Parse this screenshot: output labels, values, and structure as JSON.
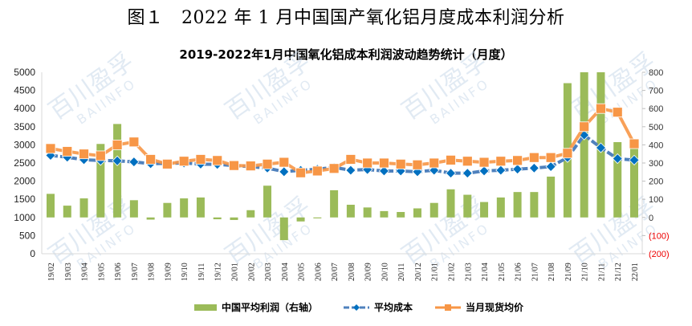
{
  "figure_title": "图１　2022 年 1 月中国国产氧化铝月度成本利润分析",
  "chart_title": "2019-2022年1月中国氧化铝成本利润波动趋势统计（月度）",
  "watermark": {
    "cn": "百川盈孚",
    "en": "BAIINFO"
  },
  "legend": {
    "profit": "中国平均利润（右轴）",
    "cost": "平均成本",
    "price": "当月现货均价"
  },
  "colors": {
    "profit": "#9bbb59",
    "cost": "#4f81bd",
    "cost_marker": "#0070c0",
    "price": "#f79646",
    "negative_tick": "#ff0000"
  },
  "left_axis_ticks": [
    "5000",
    "4500",
    "4000",
    "3500",
    "3000",
    "2500",
    "2000",
    "1500",
    "1000",
    "500",
    "0"
  ],
  "right_axis_ticks": [
    "800",
    "700",
    "600",
    "500",
    "400",
    "300",
    "200",
    "100",
    "0",
    "(100)",
    "(200)"
  ],
  "chart_data": {
    "type": "bar+line",
    "title": "2019-2022年1月中国氧化铝成本利润波动趋势统计（月度）",
    "xlabel": "",
    "ylabel": "",
    "ylim": [
      0,
      5000
    ],
    "y2lim": [
      -200,
      800
    ],
    "grid": false,
    "legend_position": "bottom",
    "categories": [
      "19/02",
      "19/03",
      "19/04",
      "19/05",
      "19/06",
      "19/07",
      "19/08",
      "19/09",
      "19/10",
      "19/11",
      "19/12",
      "20/01",
      "20/02",
      "20/03",
      "20/04",
      "20/05",
      "20/06",
      "20/07",
      "20/08",
      "20/09",
      "20/10",
      "20/11",
      "20/12",
      "21/01",
      "21/02",
      "21/03",
      "21/04",
      "21/05",
      "21/06",
      "21/07",
      "21/08",
      "21/09",
      "21/10",
      "21/11",
      "21/12",
      "22/01"
    ],
    "series": [
      {
        "name": "中国平均利润（右轴）",
        "type": "bar",
        "axis": "right",
        "values": [
          130,
          65,
          105,
          405,
          515,
          95,
          -12,
          80,
          105,
          110,
          -10,
          -14,
          40,
          175,
          -125,
          -22,
          -5,
          150,
          70,
          55,
          35,
          30,
          50,
          80,
          155,
          125,
          85,
          110,
          140,
          140,
          225,
          740,
          850,
          850,
          415,
          380
        ]
      },
      {
        "name": "平均成本",
        "type": "line",
        "axis": "left",
        "values": [
          2710,
          2660,
          2590,
          2570,
          2560,
          2530,
          2480,
          2490,
          2500,
          2470,
          2460,
          2430,
          2400,
          2360,
          2260,
          2300,
          2330,
          2380,
          2300,
          2320,
          2280,
          2280,
          2260,
          2300,
          2220,
          2220,
          2280,
          2300,
          2330,
          2360,
          2400,
          2650,
          3270,
          2920,
          2620,
          2580
        ]
      },
      {
        "name": "当月现货均价",
        "type": "line",
        "axis": "left",
        "values": [
          2900,
          2820,
          2750,
          2700,
          3000,
          3080,
          2600,
          2470,
          2550,
          2600,
          2570,
          2430,
          2420,
          2470,
          2520,
          2230,
          2280,
          2350,
          2600,
          2500,
          2500,
          2470,
          2450,
          2500,
          2580,
          2550,
          2520,
          2550,
          2570,
          2650,
          2650,
          2770,
          3500,
          4000,
          3900,
          3030
        ]
      }
    ]
  }
}
